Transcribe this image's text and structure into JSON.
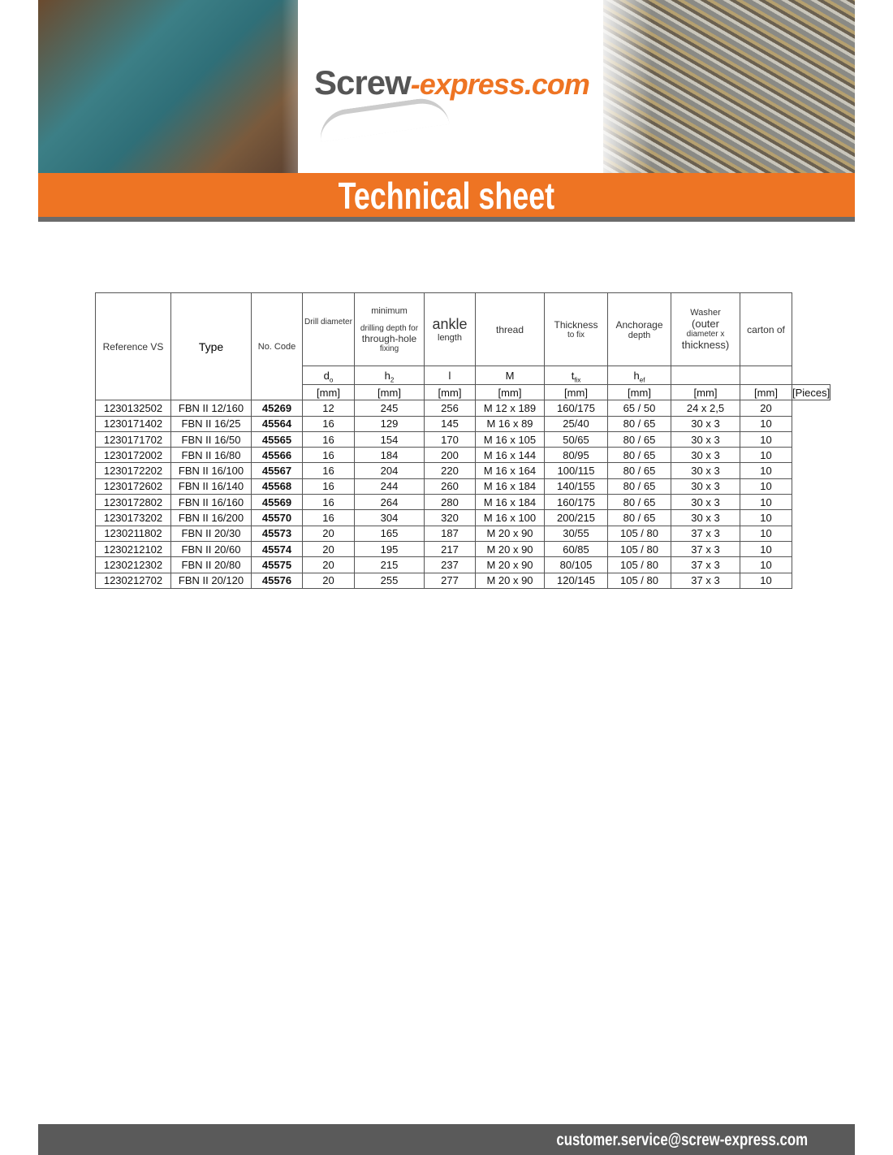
{
  "header": {
    "logo_main": "Screw",
    "logo_accent": "-express.com",
    "title": "Technical sheet"
  },
  "table": {
    "headers": [
      "Reference VS",
      "Type",
      "No. Code",
      "Drill diameter",
      "minimum drilling depth for through-hole fixing",
      "ankle length",
      "thread",
      "Thickness to fix",
      "Anchorage depth",
      "Washer (outer diameter x thickness)",
      "carton of"
    ],
    "header_parts": {
      "depth_1": "minimum",
      "depth_2": "drilling depth for",
      "depth_3": "through-hole",
      "depth_4": "fixing",
      "ankle_1": "ankle",
      "ankle_2": "length",
      "thick_1": "Thickness",
      "thick_2": "to fix",
      "anch_1": "Anchorage",
      "anch_2": "depth",
      "wash_1": "Washer",
      "wash_2": "(outer",
      "wash_3": "diameter x",
      "wash_4": "thickness)"
    },
    "symbols": {
      "d": "d",
      "d_sub": "o",
      "h": "h",
      "h_sub": "2",
      "l": "l",
      "m": "M",
      "t": "t",
      "t_sub": "fix",
      "hef": "h",
      "hef_sub": "ef"
    },
    "units": [
      "[mm]",
      "[mm]",
      "[mm]",
      "[mm]",
      "[mm]",
      "[mm]",
      "[mm]",
      "[mm]",
      "[Pieces]"
    ],
    "rows": [
      [
        "1230132502",
        "FBN II 12/160",
        "45269",
        "12",
        "245",
        "256",
        "M 12 x 189",
        "160/175",
        "65 / 50",
        "24 x 2,5",
        "20"
      ],
      [
        "1230171402",
        "FBN II 16/25",
        "45564",
        "16",
        "129",
        "145",
        "M 16 x 89",
        "25/40",
        "80 / 65",
        "30 x 3",
        "10"
      ],
      [
        "1230171702",
        "FBN II 16/50",
        "45565",
        "16",
        "154",
        "170",
        "M 16 x 105",
        "50/65",
        "80 / 65",
        "30 x 3",
        "10"
      ],
      [
        "1230172002",
        "FBN II 16/80",
        "45566",
        "16",
        "184",
        "200",
        "M 16 x 144",
        "80/95",
        "80 / 65",
        "30 x 3",
        "10"
      ],
      [
        "1230172202",
        "FBN II 16/100",
        "45567",
        "16",
        "204",
        "220",
        "M 16 x 164",
        "100/115",
        "80 / 65",
        "30 x 3",
        "10"
      ],
      [
        "1230172602",
        "FBN II 16/140",
        "45568",
        "16",
        "244",
        "260",
        "M 16 x 184",
        "140/155",
        "80 / 65",
        "30 x 3",
        "10"
      ],
      [
        "1230172802",
        "FBN II 16/160",
        "45569",
        "16",
        "264",
        "280",
        "M 16 x 184",
        "160/175",
        "80 / 65",
        "30 x 3",
        "10"
      ],
      [
        "1230173202",
        "FBN II 16/200",
        "45570",
        "16",
        "304",
        "320",
        "M 16 x 100",
        "200/215",
        "80 / 65",
        "30 x 3",
        "10"
      ],
      [
        "1230211802",
        "FBN II 20/30",
        "45573",
        "20",
        "165",
        "187",
        "M 20 x 90",
        "30/55",
        "105 / 80",
        "37 x 3",
        "10"
      ],
      [
        "1230212102",
        "FBN II 20/60",
        "45574",
        "20",
        "195",
        "217",
        "M 20 x 90",
        "60/85",
        "105 / 80",
        "37 x 3",
        "10"
      ],
      [
        "1230212302",
        "FBN II 20/80",
        "45575",
        "20",
        "215",
        "237",
        "M 20 x 90",
        "80/105",
        "105 / 80",
        "37 x 3",
        "10"
      ],
      [
        "1230212702",
        "FBN II 20/120",
        "45576",
        "20",
        "255",
        "277",
        "M 20 x 90",
        "120/145",
        "105 / 80",
        "37 x 3",
        "10"
      ]
    ]
  },
  "footer": {
    "email": "customer.service@screw-express.com"
  },
  "colors": {
    "accent": "#ee7423",
    "footer": "#5a5a5a"
  }
}
